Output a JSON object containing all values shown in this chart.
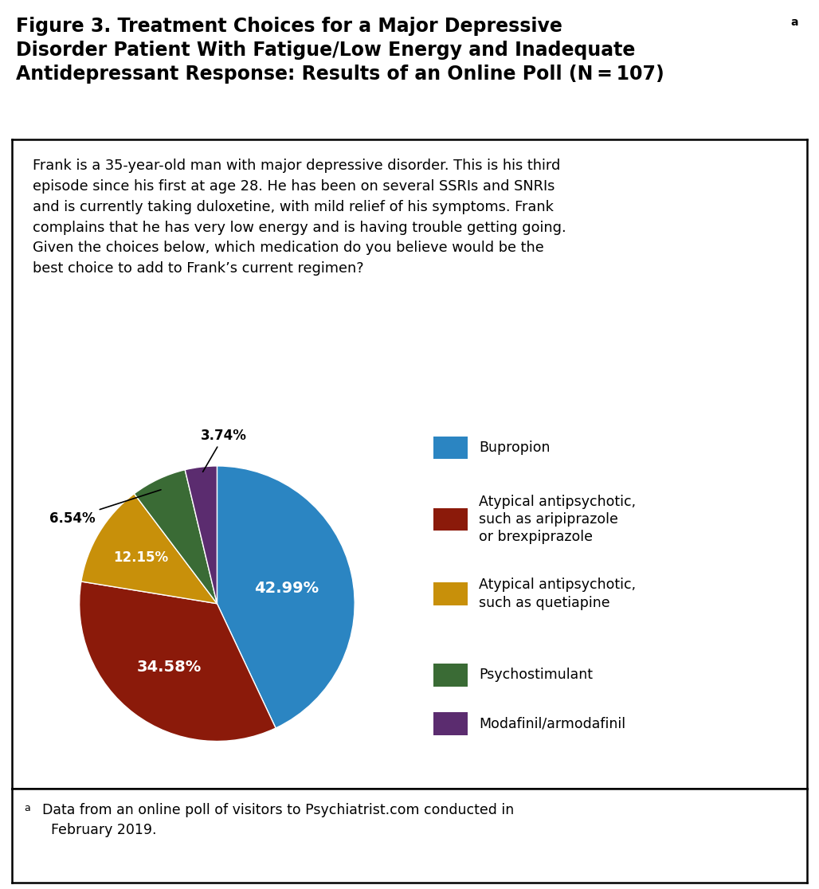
{
  "title_line1": "Figure 3. Treatment Choices for a Major Depressive",
  "title_line2": "Disorder Patient With Fatigue/Low Energy and Inadequate",
  "title_line3": "Antidepressant Response: Results of an Online Poll (N = 107)",
  "title_superscript": "a",
  "case_text": "Frank is a 35-year-old man with major depressive disorder. This is his third\nepisode since his first at age 28. He has been on several SSRIs and SNRIs\nand is currently taking duloxetine, with mild relief of his symptoms. Frank\ncomplains that he has very low energy and is having trouble getting going.\nGiven the choices below, which medication do you believe would be the\nbest choice to add to Frank’s current regimen?",
  "footnote_superscript": "a",
  "footnote_text": "Data from an online poll of visitors to Psychiatrist.com conducted in\n  February 2019.",
  "slices": [
    42.99,
    34.58,
    12.15,
    6.54,
    3.74
  ],
  "slice_colors": [
    "#2B85C2",
    "#8B1A0A",
    "#C8900A",
    "#3A6B35",
    "#5B2C6F"
  ],
  "slice_labels_inside": [
    "42.99%",
    "34.58%",
    "12.15%"
  ],
  "slice_labels_outside": [
    "6.54%",
    "3.74%"
  ],
  "label_colors_inside": [
    "white",
    "white",
    "white"
  ],
  "legend_labels": [
    "Bupropion",
    "Atypical antipsychotic,\nsuch as aripiprazole\nor brexpiprazole",
    "Atypical antipsychotic,\nsuch as quetiapine",
    "Psychostimulant",
    "Modafinil/armodafinil"
  ],
  "legend_colors": [
    "#2B85C2",
    "#8B1A0A",
    "#C8900A",
    "#3A6B35",
    "#5B2C6F"
  ],
  "background_color": "#ffffff"
}
